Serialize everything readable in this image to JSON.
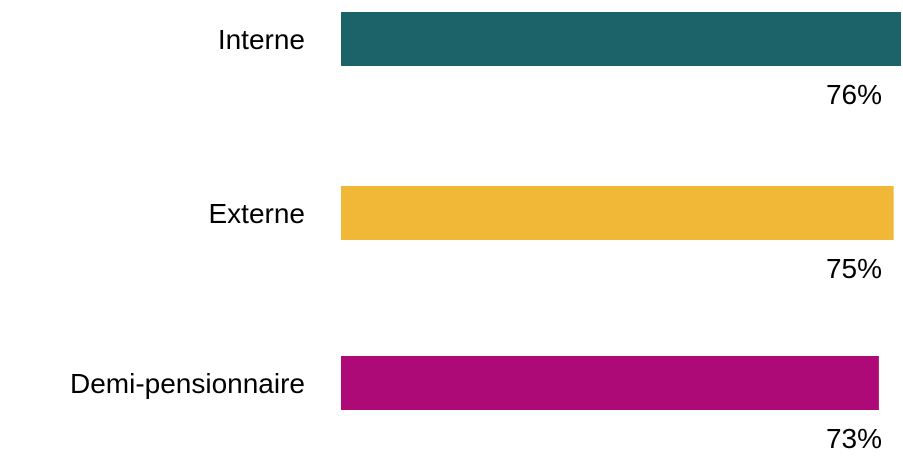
{
  "chart_data": {
    "type": "bar",
    "orientation": "horizontal",
    "categories": [
      "Interne",
      "Externe",
      "Demi-pensionnaire"
    ],
    "values": [
      76,
      75,
      73
    ],
    "value_labels": [
      "76%",
      "75%",
      "73%"
    ],
    "colors": [
      "#1b6369",
      "#f0b836",
      "#ad0a77"
    ],
    "xlim": [
      0,
      76
    ],
    "grid": false,
    "legend": "none"
  }
}
